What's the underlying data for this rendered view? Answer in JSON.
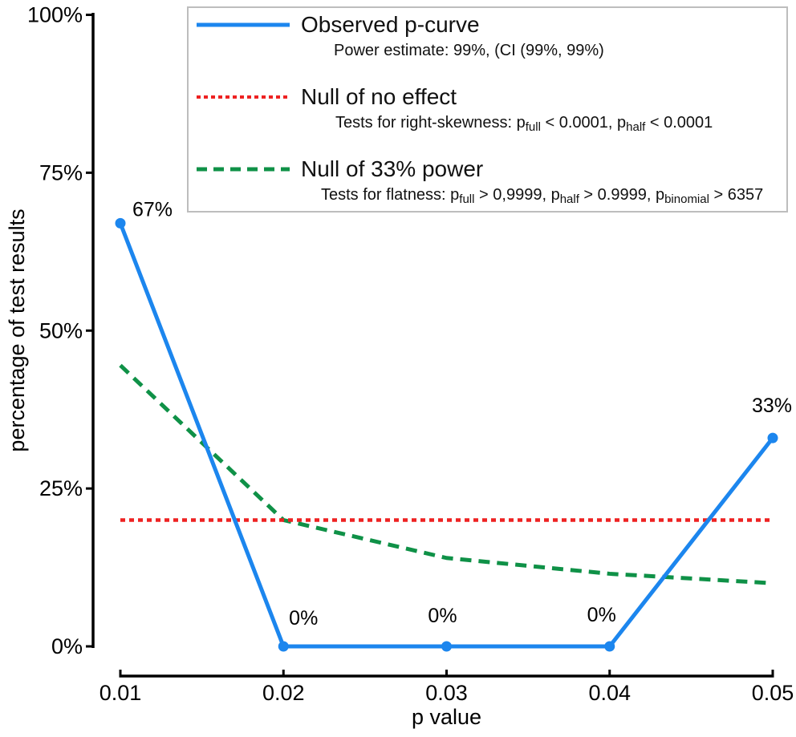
{
  "chart_data": {
    "type": "line",
    "title": "",
    "xlabel": "p value",
    "ylabel": "percentage of test results",
    "x": [
      0.01,
      0.02,
      0.03,
      0.04,
      0.05
    ],
    "x_tick_labels": [
      "0.01",
      "0.02",
      "0.03",
      "0.04",
      "0.05"
    ],
    "y_ticks": [
      0,
      25,
      50,
      75,
      100
    ],
    "y_tick_labels": [
      "0%",
      "25%",
      "50%",
      "75%",
      "100%"
    ],
    "ylim": [
      0,
      100
    ],
    "xlim": [
      0.01,
      0.05
    ],
    "grid": false,
    "legend_position": "top",
    "series": [
      {
        "name": "Observed p-curve",
        "color": "#1c86ee",
        "line_style": "solid",
        "markers": true,
        "values": [
          67,
          0,
          0,
          0,
          33
        ],
        "point_labels": [
          "67%",
          "0%",
          "0%",
          "0%",
          "33%"
        ]
      },
      {
        "name": "Null of no effect",
        "color": "#ee2222",
        "line_style": "dotted",
        "markers": false,
        "values": [
          20,
          20,
          20,
          20,
          20
        ]
      },
      {
        "name": "Null of 33% power",
        "color": "#0f9147",
        "line_style": "dashed",
        "markers": false,
        "values": [
          44.5,
          20,
          14,
          11.5,
          10
        ]
      }
    ]
  },
  "legend": {
    "entries": [
      {
        "label": "Observed p-curve",
        "detail_segments": [
          {
            "t": "Power estimate: 99%, (CI (99%, 99%)"
          }
        ]
      },
      {
        "label": "Null of no effect",
        "detail_segments": [
          {
            "t": "Tests for right-skewness: p"
          },
          {
            "sub": "full"
          },
          {
            "t": " < 0.0001, p"
          },
          {
            "sub": "half"
          },
          {
            "t": " < 0.0001"
          }
        ]
      },
      {
        "label": "Null of 33% power",
        "detail_segments": [
          {
            "t": "Tests for flatness: p"
          },
          {
            "sub": "full"
          },
          {
            "t": " > 0,9999, p"
          },
          {
            "sub": "half"
          },
          {
            "t": " > 0.9999, p"
          },
          {
            "sub": "binomial"
          },
          {
            "t": " > 6357"
          }
        ]
      }
    ]
  }
}
